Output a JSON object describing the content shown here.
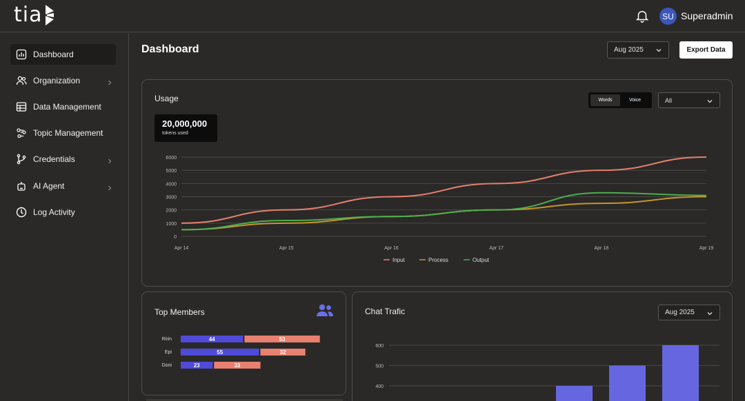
{
  "app": {
    "logo_text": "tia"
  },
  "header": {
    "user_initials": "SU",
    "user_name": "Superadmin"
  },
  "sidebar": {
    "items": [
      {
        "label": "Dashboard",
        "icon": "bar-chart-icon",
        "active": true,
        "has_chevron": false
      },
      {
        "label": "Organization",
        "icon": "users-icon",
        "active": false,
        "has_chevron": true
      },
      {
        "label": "Data Management",
        "icon": "table-icon",
        "active": false,
        "has_chevron": false
      },
      {
        "label": "Topic Management",
        "icon": "topics-icon",
        "active": false,
        "has_chevron": false
      },
      {
        "label": "Credentials",
        "icon": "git-branch-icon",
        "active": false,
        "has_chevron": true
      },
      {
        "label": "AI Agent",
        "icon": "robot-icon",
        "active": false,
        "has_chevron": true
      },
      {
        "label": "Log Activity",
        "icon": "clock-icon",
        "active": false,
        "has_chevron": false
      }
    ]
  },
  "page": {
    "title": "Dashboard",
    "month_select": "Aug 2025",
    "export_label": "Export Data"
  },
  "usage": {
    "title": "Usage",
    "tokens_value": "20,000,000",
    "tokens_label": "tokens used",
    "toggle": [
      "Words",
      "Voice"
    ],
    "toggle_active": "Words",
    "filter_select": "All"
  },
  "members": {
    "title": "Top Members"
  },
  "chat": {
    "title": "Chat Trafic",
    "month_select": "Aug 2025"
  },
  "colors": {
    "input": "#e8806f",
    "process": "#c8952b",
    "output": "#4caf50",
    "bar_blue": "#4f4ad8",
    "bar_salmon": "#e8806f",
    "chat_bar": "#6667e0"
  },
  "chart_data": [
    {
      "type": "line",
      "x": [
        "Apr 14",
        "Apr 15",
        "Apr 16",
        "Apr 17",
        "Apr 18",
        "Apr 19"
      ],
      "ylim": [
        0,
        6000
      ],
      "yticks": [
        0,
        1000,
        2000,
        3000,
        4000,
        5000,
        6000
      ],
      "grid": true,
      "legend": "bottom",
      "series": [
        {
          "name": "Input",
          "values": [
            1000,
            2000,
            3000,
            4000,
            5000,
            6000
          ]
        },
        {
          "name": "Process",
          "values": [
            500,
            1000,
            1500,
            2000,
            2500,
            3000
          ]
        },
        {
          "name": "Output",
          "values": [
            500,
            1200,
            1500,
            2000,
            3300,
            3100
          ]
        }
      ]
    },
    {
      "type": "bar",
      "orientation": "horizontal",
      "stacked": true,
      "categories": [
        "Ririn",
        "Epi",
        "Doni"
      ],
      "series": [
        {
          "values": [
            44,
            55,
            23
          ]
        },
        {
          "values": [
            53,
            32,
            33
          ]
        }
      ]
    },
    {
      "type": "bar",
      "yticks": [
        400,
        500,
        600
      ],
      "ylim": [
        300,
        650
      ],
      "grid": true,
      "values": [
        400,
        500,
        600
      ]
    }
  ]
}
